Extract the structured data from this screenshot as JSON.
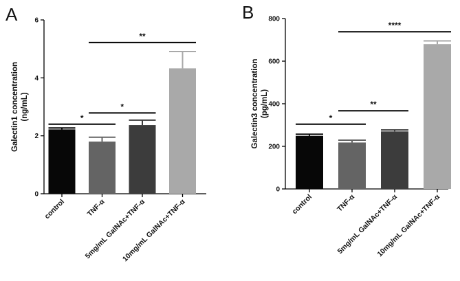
{
  "chart_data": [
    {
      "panel": "A",
      "type": "bar",
      "ylabel_lines": [
        "Galectin1 concentration",
        "(ng/mL)"
      ],
      "ylim": [
        0,
        6
      ],
      "yticks": [
        0,
        2,
        4,
        6
      ],
      "categories": [
        "control",
        "TNF-α",
        "5mg/mL GalNAc+TNF-α",
        "10mg/mL GalNAc+TNF-α"
      ],
      "values": [
        2.22,
        1.8,
        2.37,
        4.33
      ],
      "errors": [
        0.05,
        0.15,
        0.17,
        0.58
      ],
      "colors": [
        "#070707",
        "#646464",
        "#3c3c3c",
        "#a9a9a9"
      ],
      "significance": [
        {
          "from": 0,
          "to": 1,
          "y": 2.4,
          "label": "*"
        },
        {
          "from": 1,
          "to": 2,
          "y": 2.79,
          "label": "*"
        },
        {
          "from": 1,
          "to": 3,
          "y": 5.22,
          "label": "**"
        }
      ]
    },
    {
      "panel": "B",
      "type": "bar",
      "ylabel_lines": [
        "Galectin3 concentration",
        "(pg/mL)"
      ],
      "ylim": [
        0,
        800
      ],
      "yticks": [
        0,
        200,
        400,
        600,
        800
      ],
      "categories": [
        "control",
        "TNF-α",
        "5mg/mL GalNAc+TNF-α",
        "10mg/mL GalNAc+TNF-α"
      ],
      "values": [
        249,
        218,
        270,
        680
      ],
      "errors": [
        8,
        11,
        7,
        15
      ],
      "colors": [
        "#070707",
        "#646464",
        "#3c3c3c",
        "#a9a9a9"
      ],
      "significance": [
        {
          "from": 0,
          "to": 1,
          "y": 304,
          "label": "*"
        },
        {
          "from": 1,
          "to": 2,
          "y": 367,
          "label": "**"
        },
        {
          "from": 1,
          "to": 3,
          "y": 738,
          "label": "****"
        }
      ]
    }
  ]
}
